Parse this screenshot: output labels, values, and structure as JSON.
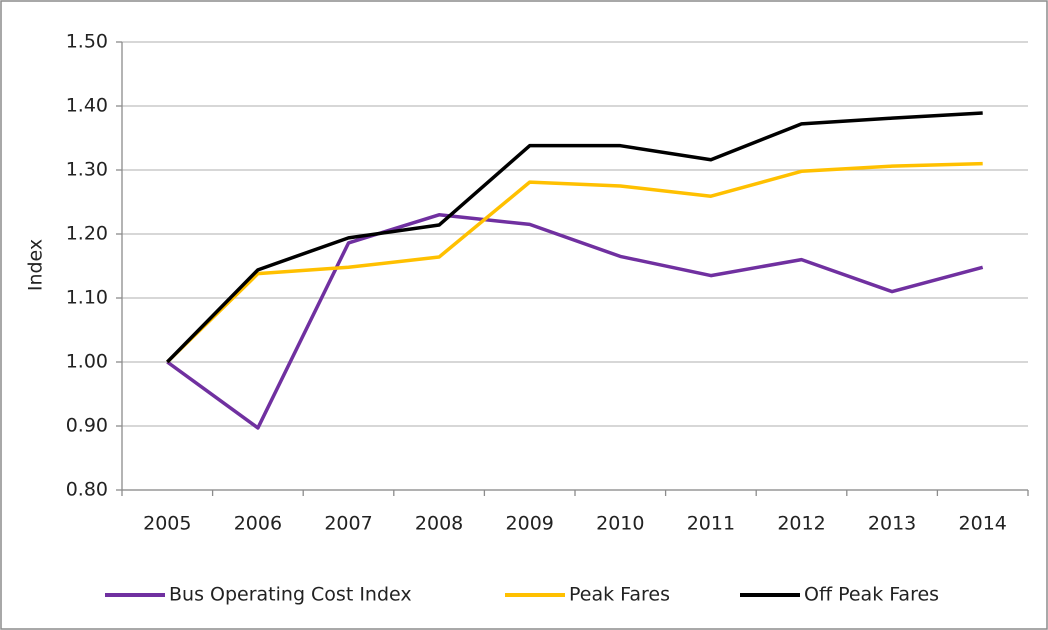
{
  "chart_data": {
    "type": "line",
    "y_label": "Index",
    "categories": [
      "2005",
      "2006",
      "2007",
      "2008",
      "2009",
      "2010",
      "2011",
      "2012",
      "2013",
      "2014"
    ],
    "series": [
      {
        "name": "Bus Operating Cost Index",
        "color": "#7030a0",
        "values": [
          1.0,
          0.897,
          1.186,
          1.23,
          1.215,
          1.165,
          1.135,
          1.16,
          1.11,
          1.148
        ]
      },
      {
        "name": "Peak Fares",
        "color": "#ffc000",
        "values": [
          1.0,
          1.138,
          1.148,
          1.164,
          1.281,
          1.275,
          1.259,
          1.298,
          1.306,
          1.31
        ]
      },
      {
        "name": "Off Peak Fares",
        "color": "#000000",
        "values": [
          1.0,
          1.144,
          1.194,
          1.214,
          1.338,
          1.338,
          1.316,
          1.372,
          1.381,
          1.389
        ]
      }
    ],
    "ylim": [
      0.8,
      1.5
    ],
    "yticks": [
      {
        "value": 0.8,
        "label": "0.80"
      },
      {
        "value": 0.9,
        "label": "0.90"
      },
      {
        "value": 1.0,
        "label": "1.00"
      },
      {
        "value": 1.1,
        "label": "1.10"
      },
      {
        "value": 1.2,
        "label": "1.20"
      },
      {
        "value": 1.3,
        "label": "1.30"
      },
      {
        "value": 1.4,
        "label": "1.40"
      },
      {
        "value": 1.5,
        "label": "1.50"
      }
    ],
    "grid": true,
    "legend": "bottom"
  }
}
